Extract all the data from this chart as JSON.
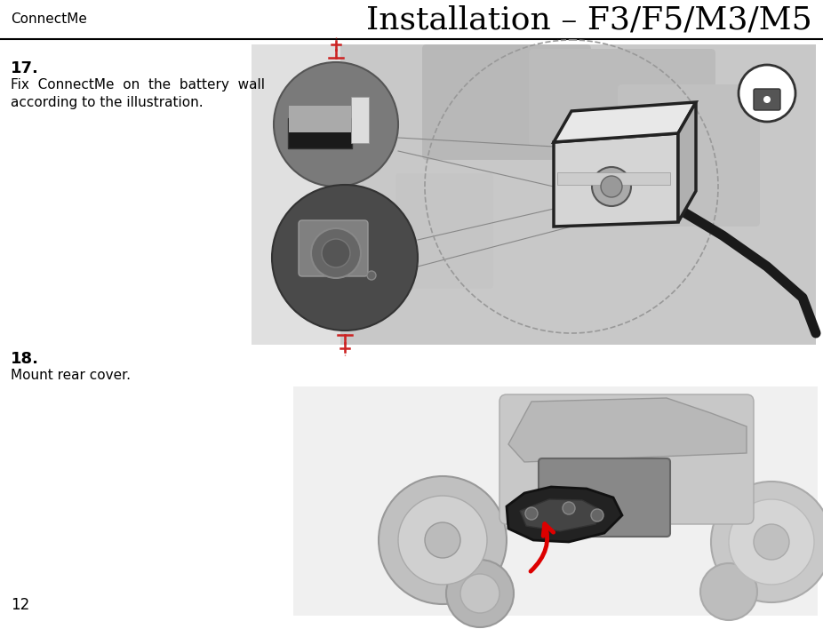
{
  "page_title_left": "ConnectMe",
  "page_title_right": "Installation – F3/F5/M3/M5",
  "step17_number": "17.",
  "step17_text_line1": "Fix  ConnectMe  on  the  battery  wall",
  "step17_text_line2": "according to the illustration.",
  "step18_number": "18.",
  "step18_text": "Mount rear cover.",
  "page_number": "12",
  "bg_color": "#ffffff",
  "text_color": "#000000",
  "header_line_color": "#000000",
  "img1_bg": "#d0d0d0",
  "img2_bg": "#e8e8e8",
  "device_color": "#c8c8c8",
  "device_edge": "#222222",
  "cable_color": "#1a1a1a",
  "lock_color": "#555555",
  "screw_color": "#cc2222",
  "zoom_circle_top_bg": "#888888",
  "zoom_circle_bot_bg": "#555555",
  "connector_line_color": "#888888"
}
